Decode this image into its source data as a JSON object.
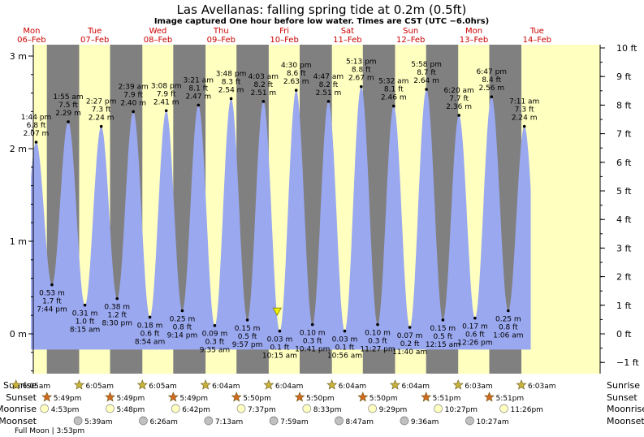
{
  "title": "Las Avellanas: falling  spring tide at 0.2m (0.5ft)",
  "subtitle": "Image captured One hour before low water. Times are CST (UTC −6.0hrs)",
  "days": [
    {
      "weekday": "Mon",
      "date": "06–Feb"
    },
    {
      "weekday": "Tue",
      "date": "07–Feb"
    },
    {
      "weekday": "Wed",
      "date": "08–Feb"
    },
    {
      "weekday": "Thu",
      "date": "09–Feb"
    },
    {
      "weekday": "Fri",
      "date": "10–Feb"
    },
    {
      "weekday": "Sat",
      "date": "11–Feb"
    },
    {
      "weekday": "Sun",
      "date": "12–Feb"
    },
    {
      "weekday": "Mon",
      "date": "13–Feb"
    },
    {
      "weekday": "Tue",
      "date": "14–Feb"
    }
  ],
  "row_labels": {
    "sunrise": "Sunrise",
    "sunset": "Sunset",
    "moonrise": "Moonrise",
    "moonset": "Moonset"
  },
  "colors": {
    "night": "#808080",
    "day": "#ffffc0",
    "tide": "#9aa8f0",
    "label": "#cc0000",
    "star_rise": "#c8b43c",
    "star_set": "#d2691e",
    "moon": "#ffffc0",
    "moon_set": "#c0c0c0"
  },
  "chart_data": {
    "type": "area",
    "title": "Las Avellanas: falling  spring tide at 0.2m (0.5ft)",
    "x_unit": "day (06-Feb 00:00 = 0)",
    "x_range": [
      0,
      9
    ],
    "ylim_m": [
      -0.45,
      3.1
    ],
    "ylim_ft": [
      -1.4,
      10.2
    ],
    "y_ticks_m": [
      {
        "v": 0,
        "label": "0 m"
      },
      {
        "v": 1,
        "label": "1 m"
      },
      {
        "v": 2,
        "label": "2 m"
      },
      {
        "v": 3,
        "label": "3 m"
      }
    ],
    "y_ticks_ft": [
      {
        "v": -1,
        "label": "−1 ft"
      },
      {
        "v": 0,
        "label": "0 ft"
      },
      {
        "v": 1,
        "label": "1 ft"
      },
      {
        "v": 2,
        "label": "2 ft"
      },
      {
        "v": 3,
        "label": "3 ft"
      },
      {
        "v": 4,
        "label": "4 ft"
      },
      {
        "v": 5,
        "label": "5 ft"
      },
      {
        "v": 6,
        "label": "6 ft"
      },
      {
        "v": 7,
        "label": "7 ft"
      },
      {
        "v": 8,
        "label": "8 ft"
      },
      {
        "v": 9,
        "label": "9 ft"
      },
      {
        "v": 10,
        "label": "10 ft"
      }
    ],
    "tides": [
      {
        "x": 0.572,
        "m": 2.07,
        "ft": "6.8 ft",
        "mlbl": "2.07 m",
        "time": "1:44 pm",
        "type": "high"
      },
      {
        "x": 0.822,
        "m": 0.53,
        "ft": "1.7 ft",
        "mlbl": "0.53 m",
        "time": "7:44 pm",
        "type": "low"
      },
      {
        "x": 1.08,
        "m": 2.29,
        "ft": "7.5 ft",
        "mlbl": "2.29 m",
        "time": "1:55 am",
        "type": "high"
      },
      {
        "x": 1.344,
        "m": 0.31,
        "ft": "1.0 ft",
        "mlbl": "0.31 m",
        "time": "8:15 am",
        "type": "low"
      },
      {
        "x": 1.602,
        "m": 2.24,
        "ft": "7.3 ft",
        "mlbl": "2.24 m",
        "time": "2:27 pm",
        "type": "high"
      },
      {
        "x": 1.854,
        "m": 0.38,
        "ft": "1.2 ft",
        "mlbl": "0.38 m",
        "time": "8:30 pm",
        "type": "low"
      },
      {
        "x": 2.11,
        "m": 2.4,
        "ft": "7.9 ft",
        "mlbl": "2.40 m",
        "time": "2:39 am",
        "type": "high"
      },
      {
        "x": 2.372,
        "m": 0.18,
        "ft": "0.6 ft",
        "mlbl": "0.18 m",
        "time": "8:54 am",
        "type": "low"
      },
      {
        "x": 2.631,
        "m": 2.41,
        "ft": "7.9 ft",
        "mlbl": "2.41 m",
        "time": "3:08 pm",
        "type": "high"
      },
      {
        "x": 2.885,
        "m": 0.25,
        "ft": "0.8 ft",
        "mlbl": "0.25 m",
        "time": "9:14 pm",
        "type": "low"
      },
      {
        "x": 3.14,
        "m": 2.47,
        "ft": "8.1 ft",
        "mlbl": "2.47 m",
        "time": "3:21 am",
        "type": "high"
      },
      {
        "x": 3.399,
        "m": 0.09,
        "ft": "0.3 ft",
        "mlbl": "0.09 m",
        "time": "9:35 am",
        "type": "low"
      },
      {
        "x": 3.658,
        "m": 2.54,
        "ft": "8.3 ft",
        "mlbl": "2.54 m",
        "time": "3:48 pm",
        "type": "high"
      },
      {
        "x": 3.915,
        "m": 0.15,
        "ft": "0.5 ft",
        "mlbl": "0.15 m",
        "time": "9:57 pm",
        "type": "low"
      },
      {
        "x": 4.169,
        "m": 2.51,
        "ft": "8.2 ft",
        "mlbl": "2.51 m",
        "time": "4:03 am",
        "type": "high"
      },
      {
        "x": 4.427,
        "m": 0.03,
        "ft": "0.1 ft",
        "mlbl": "0.03 m",
        "time": "10:15 am",
        "type": "low"
      },
      {
        "x": 4.688,
        "m": 2.63,
        "ft": "8.6 ft",
        "mlbl": "2.63 m",
        "time": "4:30 pm",
        "type": "high"
      },
      {
        "x": 4.945,
        "m": 0.1,
        "ft": "0.3 ft",
        "mlbl": "0.10 m",
        "time": "10:41 pm",
        "type": "low"
      },
      {
        "x": 5.199,
        "m": 2.51,
        "ft": "8.2 ft",
        "mlbl": "2.51 m",
        "time": "4:47 am",
        "type": "high"
      },
      {
        "x": 5.456,
        "m": 0.03,
        "ft": "0.1 ft",
        "mlbl": "0.03 m",
        "time": "10:56 am",
        "type": "low"
      },
      {
        "x": 5.717,
        "m": 2.67,
        "ft": "8.8 ft",
        "mlbl": "2.67 m",
        "time": "5:13 pm",
        "type": "high"
      },
      {
        "x": 5.977,
        "m": 0.1,
        "ft": "0.3 ft",
        "mlbl": "0.10 m",
        "time": "11:27 pm",
        "type": "low"
      },
      {
        "x": 6.231,
        "m": 2.46,
        "ft": "8.1 ft",
        "mlbl": "2.46 m",
        "time": "5:32 am",
        "type": "high"
      },
      {
        "x": 6.486,
        "m": 0.07,
        "ft": "0.2 ft",
        "mlbl": "0.07 m",
        "time": "11:40 am",
        "type": "low"
      },
      {
        "x": 6.749,
        "m": 2.64,
        "ft": "8.7 ft",
        "mlbl": "2.64 m",
        "time": "5:58 pm",
        "type": "high"
      },
      {
        "x": 7.01,
        "m": 0.15,
        "ft": "0.5 ft",
        "mlbl": "0.15 m",
        "time": "12:15 am",
        "type": "low"
      },
      {
        "x": 7.264,
        "m": 2.36,
        "ft": "7.7 ft",
        "mlbl": "2.36 m",
        "time": "6:20 am",
        "type": "high"
      },
      {
        "x": 7.518,
        "m": 0.17,
        "ft": "0.6 ft",
        "mlbl": "0.17 m",
        "time": "12:26 pm",
        "type": "low"
      },
      {
        "x": 7.78,
        "m": 2.56,
        "ft": "8.4 ft",
        "mlbl": "2.56 m",
        "time": "6:47 pm",
        "type": "high"
      },
      {
        "x": 8.044,
        "m": 0.25,
        "ft": "0.8 ft",
        "mlbl": "0.25 m",
        "time": "1:06 am",
        "type": "low"
      },
      {
        "x": 8.299,
        "m": 2.24,
        "ft": "7.3 ft",
        "mlbl": "2.24 m",
        "time": "7:11 am",
        "type": "high"
      }
    ],
    "current_level_m": 0.2,
    "current_x": 4.386,
    "data_start_x": 0.49,
    "data_end_x": 8.4,
    "sunrise": [
      {
        "x": 0.253,
        "time": "6:05am"
      },
      {
        "x": 1.253,
        "time": "6:05am"
      },
      {
        "x": 2.253,
        "time": "6:05am"
      },
      {
        "x": 3.253,
        "time": "6:04am"
      },
      {
        "x": 4.253,
        "time": "6:04am"
      },
      {
        "x": 5.253,
        "time": "6:04am"
      },
      {
        "x": 6.253,
        "time": "6:04am"
      },
      {
        "x": 7.252,
        "time": "6:03am"
      },
      {
        "x": 8.252,
        "time": "6:03am"
      }
    ],
    "sunset": [
      {
        "x": 0.742,
        "time": "5:49pm"
      },
      {
        "x": 1.742,
        "time": "5:49pm"
      },
      {
        "x": 2.742,
        "time": "5:49pm"
      },
      {
        "x": 3.743,
        "time": "5:50pm"
      },
      {
        "x": 4.743,
        "time": "5:50pm"
      },
      {
        "x": 5.743,
        "time": "5:50pm"
      },
      {
        "x": 6.744,
        "time": "5:51pm"
      },
      {
        "x": 7.744,
        "time": "5:51pm"
      }
    ],
    "moonrise": [
      {
        "x": 0.703,
        "time": "4:53pm"
      },
      {
        "x": 1.742,
        "time": "5:48pm"
      },
      {
        "x": 2.779,
        "time": "6:42pm"
      },
      {
        "x": 3.817,
        "time": "7:37pm"
      },
      {
        "x": 4.856,
        "time": "8:33pm"
      },
      {
        "x": 5.895,
        "time": "9:29pm"
      },
      {
        "x": 6.936,
        "time": "10:27pm"
      },
      {
        "x": 7.976,
        "time": "11:26pm"
      }
    ],
    "moonset": [
      {
        "x": 1.235,
        "time": "5:39am"
      },
      {
        "x": 2.268,
        "time": "6:26am"
      },
      {
        "x": 3.301,
        "time": "7:13am"
      },
      {
        "x": 4.333,
        "time": "7:59am"
      },
      {
        "x": 5.366,
        "time": "8:47am"
      },
      {
        "x": 6.4,
        "time": "9:36am"
      },
      {
        "x": 7.435,
        "time": "10:27am"
      }
    ],
    "full_moon": {
      "label": "Full Moon | 3:53pm",
      "x": 1.235
    }
  }
}
